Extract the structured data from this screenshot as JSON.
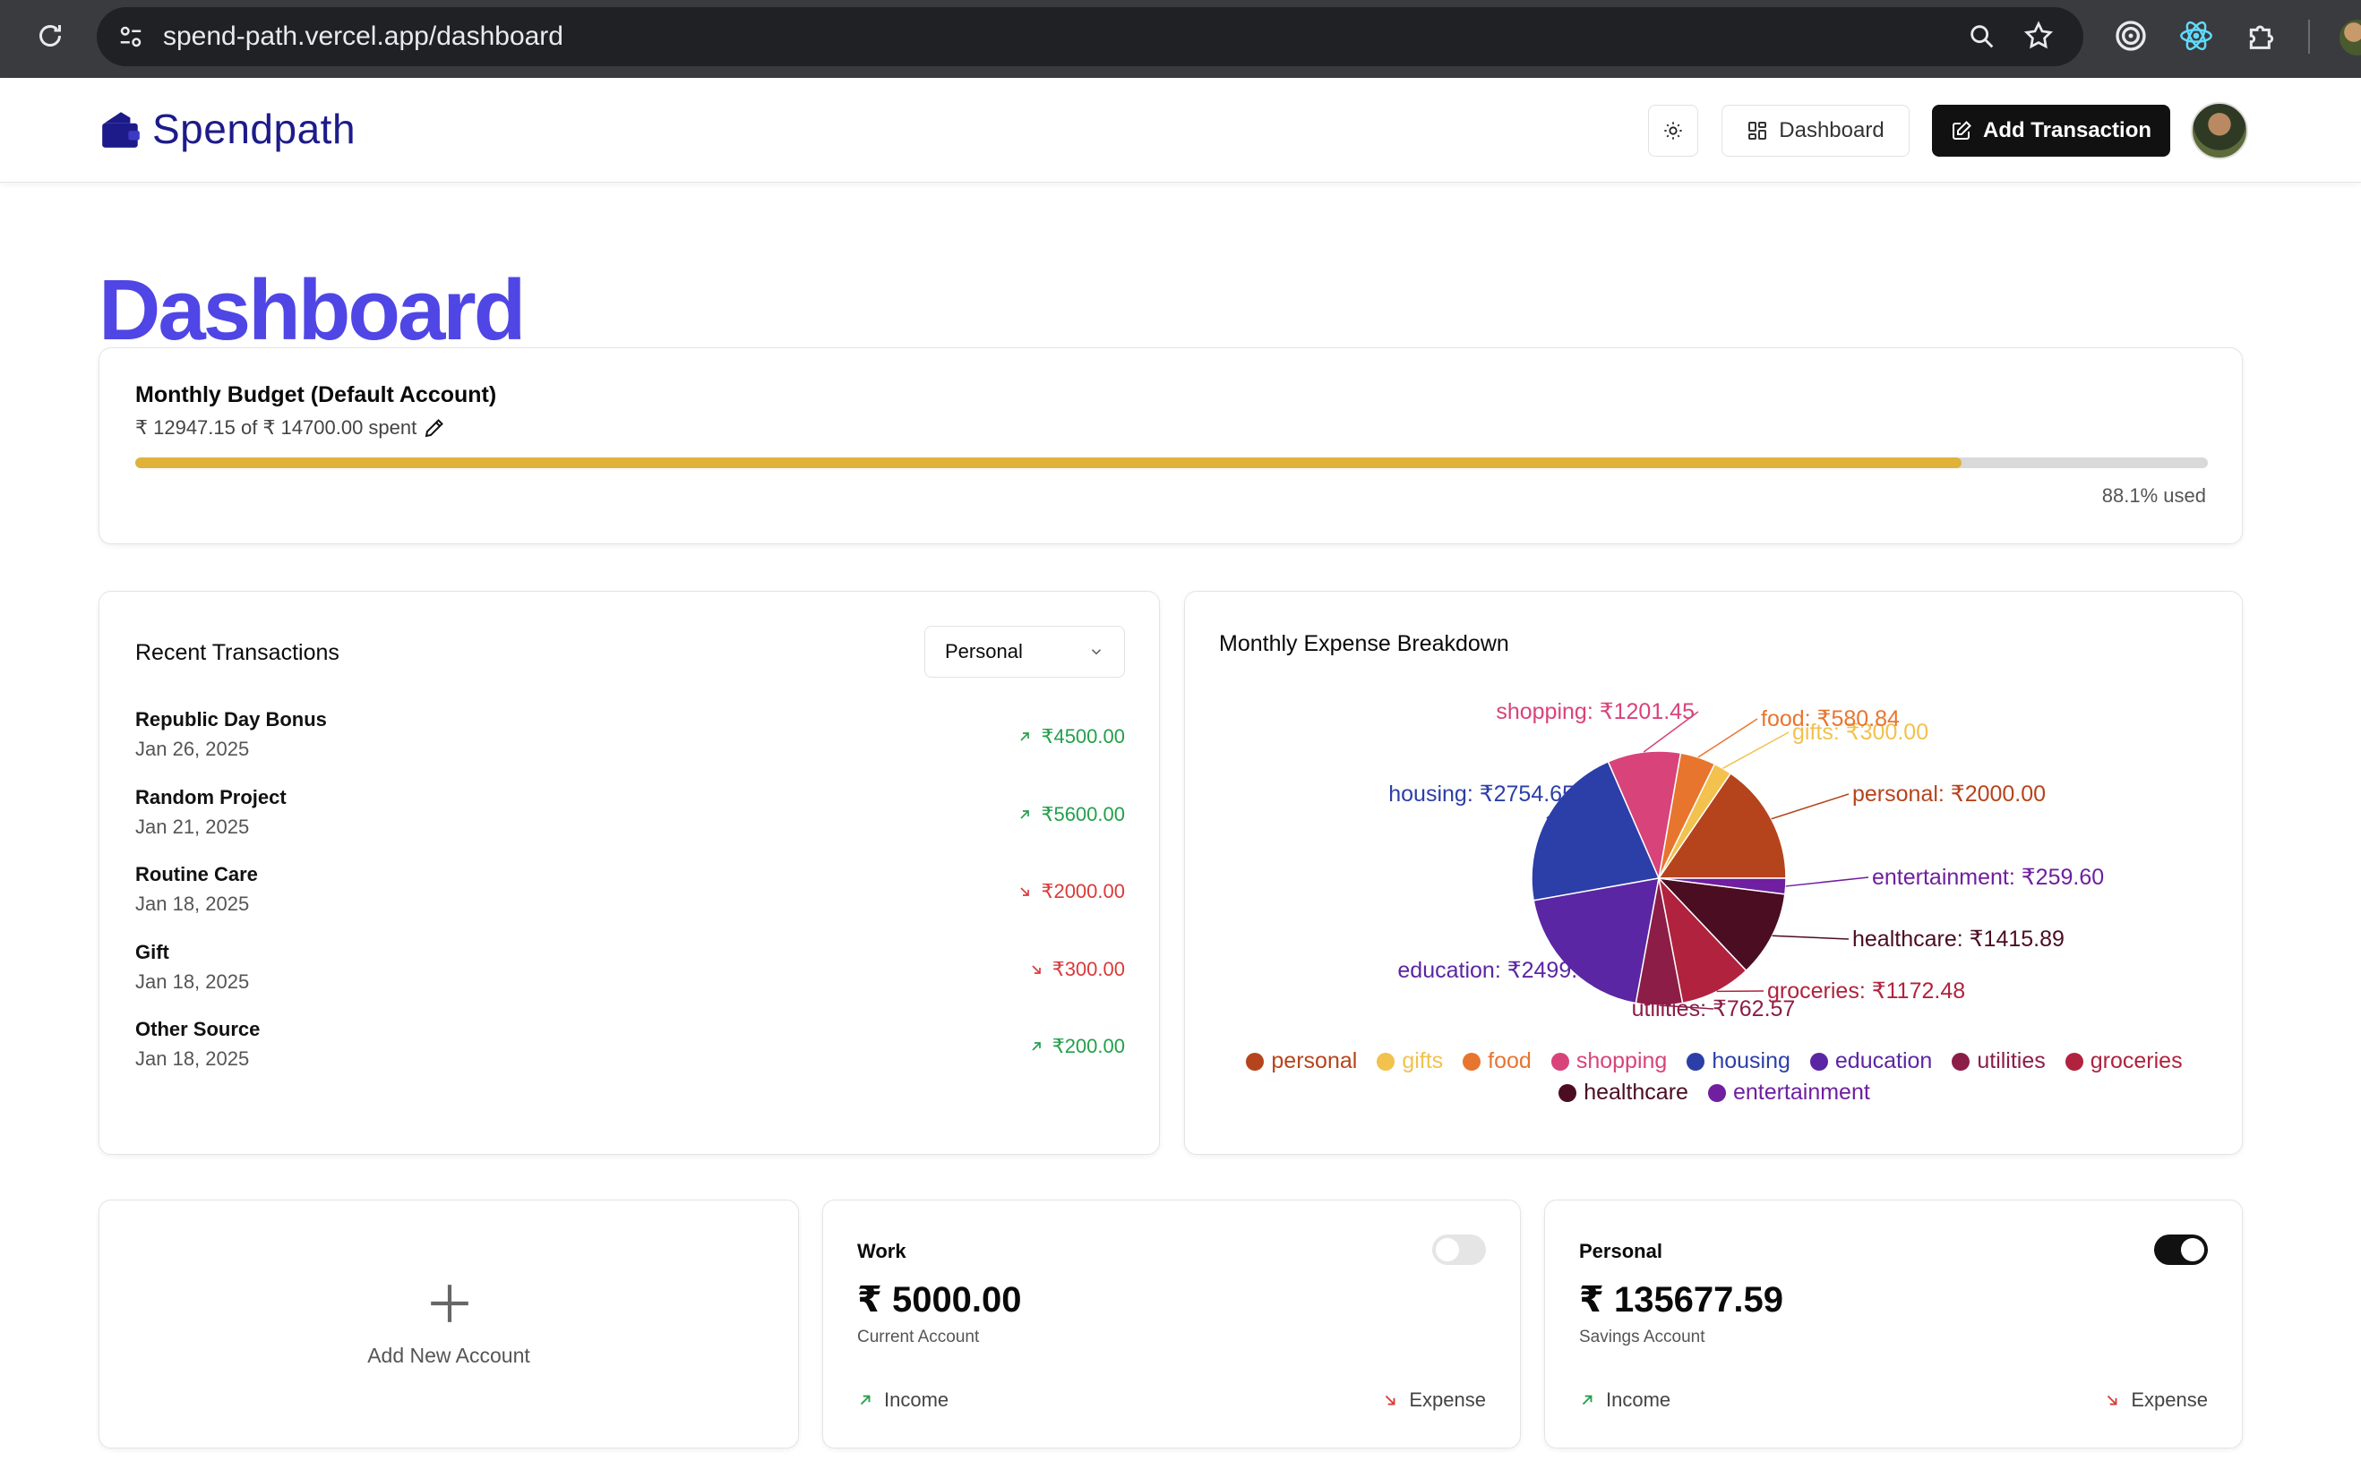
{
  "browser": {
    "url": "spend-path.vercel.app/dashboard"
  },
  "header": {
    "brand": "Spendpath",
    "dashboard_label": "Dashboard",
    "add_transaction_label": "Add Transaction"
  },
  "page": {
    "title": "Dashboard"
  },
  "budget": {
    "title": "Monthly Budget (Default Account)",
    "spent_text": "₹ 12947.15 of ₹ 14700.00 spent",
    "used_fraction": 0.881,
    "used_text": "88.1% used",
    "bar_color": "#e0b23a"
  },
  "recent": {
    "title": "Recent Transactions",
    "account_filter": "Personal",
    "items": [
      {
        "name": "Republic Day Bonus",
        "date": "Jan 26, 2025",
        "amount": "₹4500.00",
        "type": "income"
      },
      {
        "name": "Random Project",
        "date": "Jan 21, 2025",
        "amount": "₹5600.00",
        "type": "income"
      },
      {
        "name": "Routine Care",
        "date": "Jan 18, 2025",
        "amount": "₹2000.00",
        "type": "expense"
      },
      {
        "name": "Gift",
        "date": "Jan 18, 2025",
        "amount": "₹300.00",
        "type": "expense"
      },
      {
        "name": "Other Source",
        "date": "Jan 18, 2025",
        "amount": "₹200.00",
        "type": "income"
      }
    ]
  },
  "breakdown": {
    "title": "Monthly Expense Breakdown"
  },
  "chart_data": {
    "type": "pie",
    "title": "Monthly Expense Breakdown",
    "legend_placement": "bottom",
    "slices": [
      {
        "name": "personal",
        "value": 2000.0,
        "label": "personal: ₹2000.00",
        "color": "#b5441c"
      },
      {
        "name": "gifts",
        "value": 300.0,
        "label": "gifts: ₹300.00",
        "color": "#f2c14e"
      },
      {
        "name": "food",
        "value": 580.84,
        "label": "food: ₹580.84",
        "color": "#e8752e"
      },
      {
        "name": "shopping",
        "value": 1201.45,
        "label": "shopping: ₹1201.45",
        "color": "#d8437a"
      },
      {
        "name": "housing",
        "value": 2754.65,
        "label": "housing: ₹2754.65",
        "color": "#2c3ea8"
      },
      {
        "name": "education",
        "value": 2499.67,
        "label": "education: ₹2499.67",
        "color": "#5b26a3"
      },
      {
        "name": "utilities",
        "value": 762.57,
        "label": "utilities: ₹762.57",
        "color": "#8c1d47"
      },
      {
        "name": "groceries",
        "value": 1172.48,
        "label": "groceries: ₹1172.48",
        "color": "#b0223e"
      },
      {
        "name": "healthcare",
        "value": 1415.89,
        "label": "healthcare: ₹1415.89",
        "color": "#4b0d22"
      },
      {
        "name": "entertainment",
        "value": 259.6,
        "label": "entertainment: ₹259.60",
        "color": "#6f1fa0"
      }
    ]
  },
  "accounts": {
    "add_label": "Add New Account",
    "income_label": "Income",
    "expense_label": "Expense",
    "items": [
      {
        "name": "Work",
        "balance": "₹ 5000.00",
        "type": "Current Account",
        "default": false
      },
      {
        "name": "Personal",
        "balance": "₹ 135677.59",
        "type": "Savings Account",
        "default": true
      }
    ]
  },
  "icons": {
    "reload": "reload-icon",
    "site_settings": "site-settings-icon",
    "zoom": "zoom-icon",
    "bookmark": "star-icon",
    "extensions": [
      "target-extension-icon",
      "react-devtools-icon",
      "puzzle-icon"
    ],
    "theme": "sun-icon",
    "dashboard": "grid-icon",
    "add": "edit-icon",
    "pencil": "pencil-icon",
    "chevron": "chevron-down-icon",
    "plus": "plus-icon"
  }
}
